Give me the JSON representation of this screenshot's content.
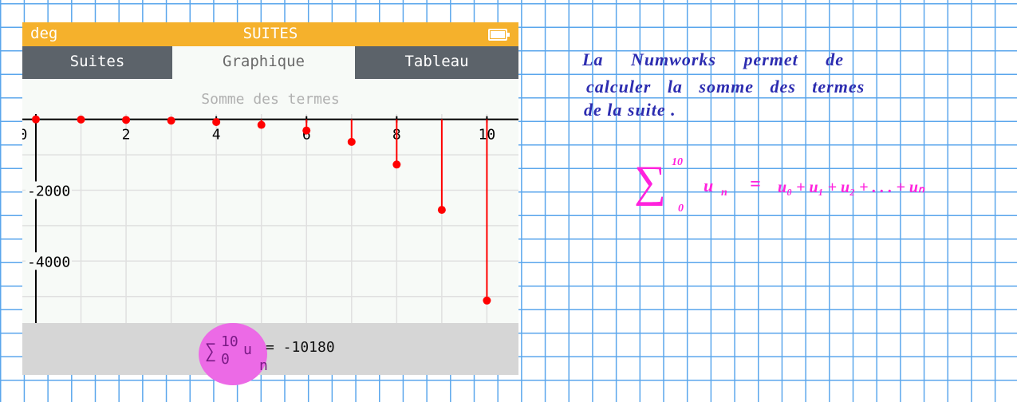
{
  "calculator": {
    "angle_mode": "deg",
    "app_title": "SUITES",
    "battery_icon": "battery-full-icon",
    "tabs": [
      {
        "label": "Suites",
        "active": false
      },
      {
        "label": "Graphique",
        "active": true
      },
      {
        "label": "Tableau",
        "active": false
      }
    ],
    "banner": "Somme des termes",
    "result": {
      "sigma": "∑",
      "upper": "10",
      "lower": "0",
      "term": "u",
      "index": "n",
      "value": "= -10180"
    },
    "highlight_color": "#ec6ae6"
  },
  "chart_data": {
    "type": "scatter",
    "style": "stem",
    "x": [
      0,
      1,
      2,
      3,
      4,
      5,
      6,
      7,
      8,
      9,
      10
    ],
    "y": [
      0,
      -5,
      -15,
      -35,
      -75,
      -155,
      -315,
      -635,
      -1275,
      -2555,
      -5115
    ],
    "xlim": [
      -0.3,
      10.7
    ],
    "ylim": [
      -5750,
      150
    ],
    "xticks": [
      "0",
      "2",
      "4",
      "6",
      "8",
      "10"
    ],
    "yticks": [
      "-2000",
      "-4000"
    ],
    "grid": true,
    "color": "#ff0000",
    "highlighted_from_x": 5
  },
  "notes": {
    "line1": "La Numworks permet de",
    "line2": "calculer la somme des termes",
    "line3": "de la suite .",
    "formula": {
      "sigma": "∑",
      "upper": "10",
      "lower": "0",
      "lhs": "u",
      "lhs_index": "n",
      "eq": "=",
      "rhs": "u₀ + u₁ + u₂ + . . . + uₙ"
    }
  }
}
